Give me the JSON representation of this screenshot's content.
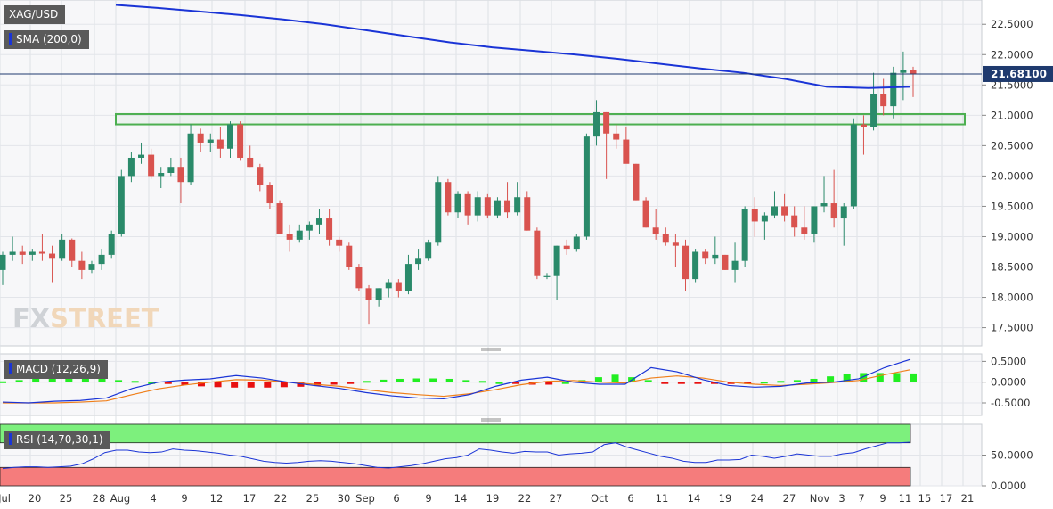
{
  "title": "XAG/USD",
  "indicators": {
    "sma": "SMA (200,0)",
    "macd": "MACD (12,26,9)",
    "rsi": "RSI (14,70,30,1)"
  },
  "watermark": {
    "part1": "FX",
    "part2": "STREET"
  },
  "last_price": "21.68100",
  "colors": {
    "up": "#2a8a6a",
    "down": "#d9534f",
    "sma": "#1a34d6",
    "zone": "#4caf50",
    "macd_line": "#1a34d6",
    "signal_line": "#ef7f1a",
    "hist_pos": "#22ee22",
    "hist_neg": "#e81010",
    "rsi_line": "#1a34d6",
    "overbought": "#7df07d",
    "oversold": "#f57c7c",
    "price_badge": "#1f3a6e"
  },
  "chart_data": [
    {
      "type": "candlestick",
      "title": "XAG/USD",
      "x_labels": [
        "Jul",
        "20",
        "25",
        "28",
        "Aug",
        "4",
        "9",
        "12",
        "17",
        "22",
        "25",
        "30",
        "Sep",
        "6",
        "9",
        "14",
        "19",
        "22",
        "27",
        "Oct",
        "6",
        "11",
        "14",
        "19",
        "24",
        "27",
        "Nov",
        "3",
        "7",
        "9",
        "11",
        "15",
        "17",
        "21"
      ],
      "ylim": [
        17.2,
        22.9
      ],
      "y_ticks": [
        "17.5000",
        "18.0000",
        "18.5000",
        "19.0000",
        "19.5000",
        "20.0000",
        "20.5000",
        "21.0000",
        "21.5000",
        "22.0000",
        "22.5000"
      ],
      "resistance_zone": [
        20.85,
        21.02
      ],
      "last_price": 21.681,
      "candles": [
        [
          18.45,
          18.75,
          18.2,
          18.7
        ],
        [
          18.7,
          19.0,
          18.6,
          18.75
        ],
        [
          18.75,
          18.85,
          18.55,
          18.7
        ],
        [
          18.7,
          18.8,
          18.6,
          18.75
        ],
        [
          18.75,
          19.05,
          18.6,
          18.72
        ],
        [
          18.72,
          18.85,
          18.25,
          18.65
        ],
        [
          18.65,
          19.05,
          18.6,
          18.95
        ],
        [
          18.95,
          18.97,
          18.5,
          18.6
        ],
        [
          18.6,
          18.75,
          18.3,
          18.45
        ],
        [
          18.45,
          18.6,
          18.4,
          18.55
        ],
        [
          18.55,
          18.8,
          18.45,
          18.7
        ],
        [
          18.7,
          19.1,
          18.65,
          19.05
        ],
        [
          19.05,
          20.1,
          19.0,
          20.0
        ],
        [
          20.0,
          20.4,
          19.9,
          20.3
        ],
        [
          20.3,
          20.55,
          20.2,
          20.35
        ],
        [
          20.35,
          20.45,
          19.95,
          20.0
        ],
        [
          20.0,
          20.15,
          19.8,
          20.05
        ],
        [
          20.05,
          20.3,
          20.0,
          20.15
        ],
        [
          20.15,
          20.3,
          19.55,
          19.9
        ],
        [
          19.9,
          20.85,
          19.85,
          20.7
        ],
        [
          20.7,
          20.78,
          20.4,
          20.55
        ],
        [
          20.55,
          20.7,
          20.4,
          20.6
        ],
        [
          20.6,
          20.8,
          20.3,
          20.45
        ],
        [
          20.45,
          20.9,
          20.3,
          20.85
        ],
        [
          20.85,
          20.9,
          20.25,
          20.3
        ],
        [
          20.3,
          20.5,
          20.15,
          20.15
        ],
        [
          20.15,
          20.2,
          19.75,
          19.85
        ],
        [
          19.85,
          19.9,
          19.45,
          19.55
        ],
        [
          19.55,
          19.6,
          19.05,
          19.05
        ],
        [
          19.05,
          19.2,
          18.75,
          18.95
        ],
        [
          18.95,
          19.2,
          18.9,
          19.1
        ],
        [
          19.1,
          19.25,
          18.95,
          19.2
        ],
        [
          19.2,
          19.45,
          19.05,
          19.3
        ],
        [
          19.3,
          19.45,
          18.85,
          18.95
        ],
        [
          18.95,
          19.0,
          18.75,
          18.85
        ],
        [
          18.85,
          18.9,
          18.45,
          18.5
        ],
        [
          18.5,
          18.55,
          18.1,
          18.15
        ],
        [
          18.15,
          18.2,
          17.55,
          17.95
        ],
        [
          17.95,
          18.15,
          17.85,
          18.15
        ],
        [
          18.15,
          18.3,
          18.0,
          18.25
        ],
        [
          18.25,
          18.3,
          18.0,
          18.1
        ],
        [
          18.1,
          18.7,
          18.05,
          18.55
        ],
        [
          18.55,
          18.8,
          18.45,
          18.65
        ],
        [
          18.65,
          18.95,
          18.6,
          18.9
        ],
        [
          18.9,
          20.0,
          18.85,
          19.9
        ],
        [
          19.9,
          19.95,
          19.35,
          19.4
        ],
        [
          19.4,
          19.75,
          19.3,
          19.7
        ],
        [
          19.7,
          19.75,
          19.2,
          19.35
        ],
        [
          19.35,
          19.75,
          19.25,
          19.65
        ],
        [
          19.65,
          19.7,
          19.3,
          19.35
        ],
        [
          19.35,
          19.65,
          19.3,
          19.6
        ],
        [
          19.6,
          19.9,
          19.3,
          19.4
        ],
        [
          19.4,
          19.9,
          19.35,
          19.65
        ],
        [
          19.65,
          19.75,
          19.1,
          19.1
        ],
        [
          19.1,
          19.15,
          18.3,
          18.35
        ],
        [
          18.35,
          18.4,
          18.3,
          18.35
        ],
        [
          18.35,
          18.85,
          17.95,
          18.85
        ],
        [
          18.85,
          18.95,
          18.7,
          18.8
        ],
        [
          18.8,
          19.05,
          18.75,
          19.0
        ],
        [
          19.0,
          20.7,
          18.95,
          20.65
        ],
        [
          20.65,
          21.25,
          20.5,
          21.05
        ],
        [
          21.05,
          21.05,
          19.95,
          20.7
        ],
        [
          20.7,
          20.85,
          20.45,
          20.6
        ],
        [
          20.6,
          20.8,
          20.25,
          20.2
        ],
        [
          20.2,
          20.2,
          19.6,
          19.6
        ],
        [
          19.6,
          19.65,
          19.15,
          19.15
        ],
        [
          19.15,
          19.45,
          18.95,
          19.05
        ],
        [
          19.05,
          19.15,
          18.85,
          18.9
        ],
        [
          18.9,
          19.05,
          18.5,
          18.85
        ],
        [
          18.85,
          18.95,
          18.1,
          18.3
        ],
        [
          18.3,
          18.8,
          18.25,
          18.75
        ],
        [
          18.75,
          18.8,
          18.55,
          18.65
        ],
        [
          18.65,
          19.0,
          18.55,
          18.7
        ],
        [
          18.7,
          18.7,
          18.45,
          18.45
        ],
        [
          18.45,
          18.9,
          18.25,
          18.6
        ],
        [
          18.6,
          19.5,
          18.5,
          19.45
        ],
        [
          19.45,
          19.65,
          19.0,
          19.25
        ],
        [
          19.25,
          19.4,
          18.95,
          19.35
        ],
        [
          19.35,
          19.75,
          19.3,
          19.5
        ],
        [
          19.5,
          19.7,
          19.25,
          19.35
        ],
        [
          19.35,
          19.5,
          19.0,
          19.15
        ],
        [
          19.15,
          19.5,
          18.95,
          19.05
        ],
        [
          19.05,
          19.5,
          18.9,
          19.5
        ],
        [
          19.5,
          20.0,
          19.4,
          19.55
        ],
        [
          19.55,
          20.1,
          19.15,
          19.3
        ],
        [
          19.3,
          19.55,
          18.85,
          19.5
        ],
        [
          19.5,
          20.95,
          19.45,
          20.85
        ],
        [
          20.85,
          21.0,
          20.35,
          20.8
        ],
        [
          20.8,
          21.7,
          20.75,
          21.35
        ],
        [
          21.35,
          21.6,
          21.0,
          21.15
        ],
        [
          21.15,
          21.8,
          20.95,
          21.7
        ],
        [
          21.7,
          22.05,
          21.25,
          21.75
        ],
        [
          21.75,
          21.8,
          21.3,
          21.68
        ]
      ],
      "sma": [
        22.82,
        22.77,
        22.71,
        22.65,
        22.58,
        22.5,
        22.4,
        22.3,
        22.2,
        22.12,
        22.06,
        22.0,
        21.93,
        21.85,
        21.77,
        21.7,
        21.6,
        21.47,
        21.45,
        21.47
      ]
    },
    {
      "type": "line",
      "title": "MACD (12,26,9)",
      "ylim": [
        -0.8,
        0.68
      ],
      "y_ticks": [
        "-0.5000",
        "0.0000",
        "0.5000"
      ],
      "macd": [
        -0.48,
        -0.5,
        -0.46,
        -0.44,
        -0.38,
        -0.15,
        0.0,
        0.05,
        0.08,
        0.16,
        0.1,
        0.0,
        -0.08,
        -0.15,
        -0.25,
        -0.33,
        -0.38,
        -0.4,
        -0.3,
        -0.1,
        0.05,
        0.12,
        0.0,
        -0.05,
        -0.05,
        0.35,
        0.25,
        0.06,
        -0.08,
        -0.12,
        -0.1,
        -0.02,
        0.0,
        0.08,
        0.35,
        0.55
      ],
      "signal": [
        -0.5,
        -0.5,
        -0.5,
        -0.48,
        -0.45,
        -0.3,
        -0.16,
        -0.07,
        0.0,
        0.06,
        0.05,
        0.0,
        -0.05,
        -0.1,
        -0.18,
        -0.25,
        -0.3,
        -0.34,
        -0.28,
        -0.18,
        -0.06,
        0.02,
        0.04,
        0.0,
        -0.02,
        0.1,
        0.15,
        0.1,
        0.0,
        -0.05,
        -0.08,
        -0.05,
        -0.01,
        0.04,
        0.18,
        0.3
      ],
      "histogram": [
        0.02,
        0.05,
        0.09,
        0.12,
        0.12,
        0.11,
        0.08,
        0.05,
        0.03,
        0.0,
        -0.04,
        -0.07,
        -0.1,
        -0.12,
        -0.13,
        -0.13,
        -0.13,
        -0.12,
        -0.11,
        -0.09,
        -0.06,
        -0.02,
        0.03,
        0.06,
        0.08,
        0.09,
        0.09,
        0.08,
        0.05,
        0.03,
        0.0,
        -0.03,
        -0.06,
        -0.06,
        0.0,
        0.05,
        0.12,
        0.18,
        0.12,
        0.05,
        -0.02,
        -0.04,
        -0.04,
        -0.02,
        -0.02,
        -0.01,
        0.01,
        0.03,
        0.05,
        0.08,
        0.14,
        0.2,
        0.22,
        0.22,
        0.22,
        0.21
      ]
    },
    {
      "type": "line",
      "title": "RSI (14,70,30,1)",
      "ylim": [
        0,
        100
      ],
      "y_ticks": [
        "0.0000",
        "50.0000"
      ],
      "overbought": 70,
      "oversold": 30,
      "rsi": [
        28,
        30,
        31,
        31,
        30,
        31,
        32,
        36,
        44,
        54,
        58,
        58,
        55,
        54,
        55,
        60,
        58,
        57,
        55,
        53,
        50,
        48,
        44,
        40,
        38,
        37,
        38,
        40,
        41,
        40,
        38,
        36,
        33,
        30,
        29,
        31,
        33,
        36,
        40,
        44,
        46,
        50,
        60,
        58,
        55,
        53,
        56,
        55,
        55,
        50,
        52,
        53,
        55,
        67,
        70,
        63,
        58,
        53,
        48,
        45,
        40,
        38,
        38,
        42,
        42,
        43,
        50,
        48,
        45,
        48,
        52,
        50,
        48,
        48,
        52,
        54,
        60,
        65,
        70,
        70,
        71
      ]
    }
  ]
}
